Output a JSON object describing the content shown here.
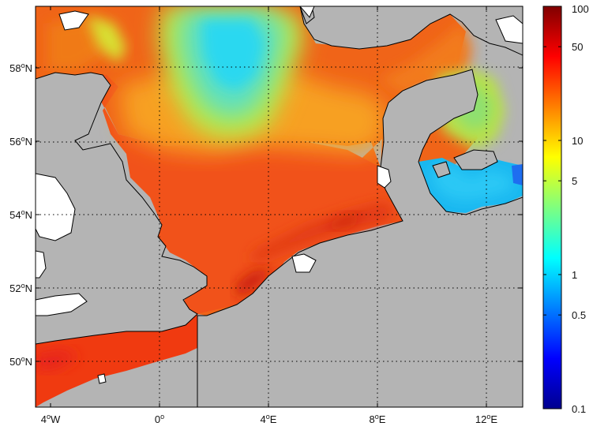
{
  "map": {
    "lon_ticks": [
      {
        "value": -4,
        "label": "4",
        "hemi": "W"
      },
      {
        "value": 0,
        "label": "0",
        "hemi": ""
      },
      {
        "value": 4,
        "label": "4",
        "hemi": "E"
      },
      {
        "value": 8,
        "label": "8",
        "hemi": "E"
      },
      {
        "value": 12,
        "label": "12",
        "hemi": "E"
      }
    ],
    "lat_ticks": [
      {
        "value": 50,
        "label": "50",
        "hemi": "N"
      },
      {
        "value": 52,
        "label": "52",
        "hemi": "N"
      },
      {
        "value": 54,
        "label": "54",
        "hemi": "N"
      },
      {
        "value": 56,
        "label": "56",
        "hemi": "N"
      },
      {
        "value": 58,
        "label": "58",
        "hemi": "N"
      }
    ],
    "degree_symbol": "o",
    "lon_range": [
      -4.3,
      13.5
    ],
    "lat_range": [
      48.6,
      59.5
    ],
    "grid": "dotted",
    "land_color": "#b4b4b4",
    "nodata_color": "#ffffff"
  },
  "colorbar": {
    "scale": "log",
    "range": [
      0.1,
      100
    ],
    "colormap": "jet",
    "ticks": [
      "100",
      "50",
      "10",
      "5",
      "1",
      "0.5",
      "0.1"
    ]
  }
}
